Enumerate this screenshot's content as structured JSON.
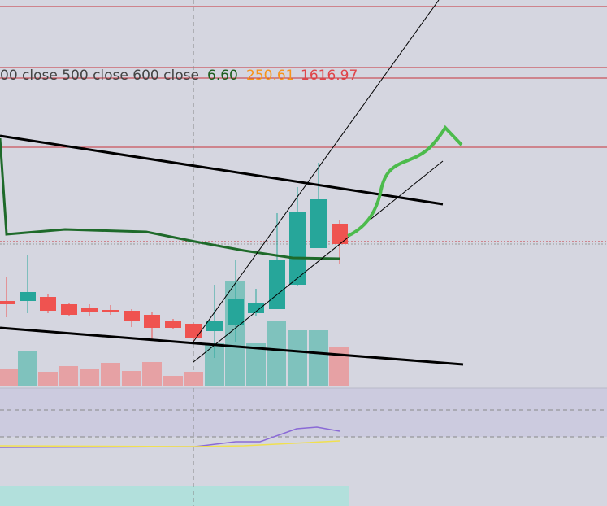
{
  "legend": {
    "prefix": "00 close 500 close 600 close",
    "value1": "6.60",
    "value2": "250.61",
    "value3": "1616.97"
  }
}
